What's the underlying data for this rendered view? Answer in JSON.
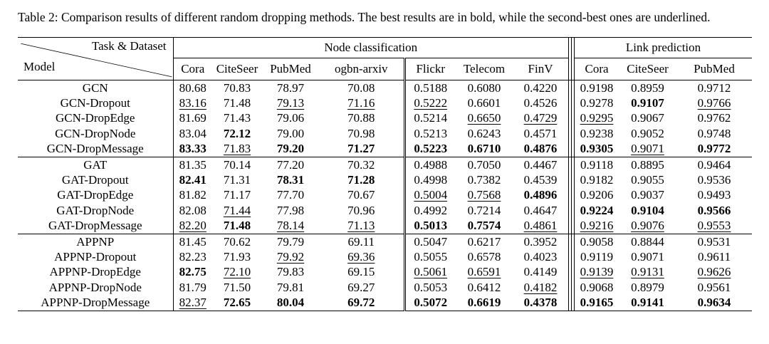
{
  "caption": "Table 2: Comparison results of different random dropping methods. The best results are in bold, while the second-best ones are underlined.",
  "header": {
    "corner_top": "Task & Dataset",
    "corner_bottom": "Model",
    "groups": [
      {
        "label": "Node classification",
        "span": 7
      },
      {
        "label": "Link prediction",
        "span": 3
      }
    ],
    "columns": [
      "Cora",
      "CiteSeer",
      "PubMed",
      "ogbn-arxiv",
      "Flickr",
      "Telecom",
      "FinV",
      "Cora",
      "CiteSeer",
      "PubMed"
    ]
  },
  "style_codes": {
    "p": "plain",
    "b": "best-bold",
    "u": "second-best-underlined"
  },
  "blocks": [
    {
      "rows": [
        {
          "model": "GCN",
          "values": [
            {
              "t": "80.68",
              "s": "p"
            },
            {
              "t": "70.83",
              "s": "p"
            },
            {
              "t": "78.97",
              "s": "p"
            },
            {
              "t": "70.08",
              "s": "p"
            },
            {
              "t": "0.5188",
              "s": "p"
            },
            {
              "t": "0.6080",
              "s": "p"
            },
            {
              "t": "0.4220",
              "s": "p"
            },
            {
              "t": "0.9198",
              "s": "p"
            },
            {
              "t": "0.8959",
              "s": "p"
            },
            {
              "t": "0.9712",
              "s": "p"
            }
          ]
        },
        {
          "model": "GCN-Dropout",
          "values": [
            {
              "t": "83.16",
              "s": "u"
            },
            {
              "t": "71.48",
              "s": "p"
            },
            {
              "t": "79.13",
              "s": "u"
            },
            {
              "t": "71.16",
              "s": "u"
            },
            {
              "t": "0.5222",
              "s": "u"
            },
            {
              "t": "0.6601",
              "s": "p"
            },
            {
              "t": "0.4526",
              "s": "p"
            },
            {
              "t": "0.9278",
              "s": "p"
            },
            {
              "t": "0.9107",
              "s": "b"
            },
            {
              "t": "0.9766",
              "s": "u"
            }
          ]
        },
        {
          "model": "GCN-DropEdge",
          "values": [
            {
              "t": "81.69",
              "s": "p"
            },
            {
              "t": "71.43",
              "s": "p"
            },
            {
              "t": "79.06",
              "s": "p"
            },
            {
              "t": "70.88",
              "s": "p"
            },
            {
              "t": "0.5214",
              "s": "p"
            },
            {
              "t": "0.6650",
              "s": "u"
            },
            {
              "t": "0.4729",
              "s": "u"
            },
            {
              "t": "0.9295",
              "s": "u"
            },
            {
              "t": "0.9067",
              "s": "p"
            },
            {
              "t": "0.9762",
              "s": "p"
            }
          ]
        },
        {
          "model": "GCN-DropNode",
          "values": [
            {
              "t": "83.04",
              "s": "p"
            },
            {
              "t": "72.12",
              "s": "b"
            },
            {
              "t": "79.00",
              "s": "p"
            },
            {
              "t": "70.98",
              "s": "p"
            },
            {
              "t": "0.5213",
              "s": "p"
            },
            {
              "t": "0.6243",
              "s": "p"
            },
            {
              "t": "0.4571",
              "s": "p"
            },
            {
              "t": "0.9238",
              "s": "p"
            },
            {
              "t": "0.9052",
              "s": "p"
            },
            {
              "t": "0.9748",
              "s": "p"
            }
          ]
        },
        {
          "model": "GCN-DropMessage",
          "values": [
            {
              "t": "83.33",
              "s": "b"
            },
            {
              "t": "71.83",
              "s": "u"
            },
            {
              "t": "79.20",
              "s": "b"
            },
            {
              "t": "71.27",
              "s": "b"
            },
            {
              "t": "0.5223",
              "s": "b"
            },
            {
              "t": "0.6710",
              "s": "b"
            },
            {
              "t": "0.4876",
              "s": "b"
            },
            {
              "t": "0.9305",
              "s": "b"
            },
            {
              "t": "0.9071",
              "s": "u"
            },
            {
              "t": "0.9772",
              "s": "b"
            }
          ]
        }
      ]
    },
    {
      "rows": [
        {
          "model": "GAT",
          "values": [
            {
              "t": "81.35",
              "s": "p"
            },
            {
              "t": "70.14",
              "s": "p"
            },
            {
              "t": "77.20",
              "s": "p"
            },
            {
              "t": "70.32",
              "s": "p"
            },
            {
              "t": "0.4988",
              "s": "p"
            },
            {
              "t": "0.7050",
              "s": "p"
            },
            {
              "t": "0.4467",
              "s": "p"
            },
            {
              "t": "0.9118",
              "s": "p"
            },
            {
              "t": "0.8895",
              "s": "p"
            },
            {
              "t": "0.9464",
              "s": "p"
            }
          ]
        },
        {
          "model": "GAT-Dropout",
          "values": [
            {
              "t": "82.41",
              "s": "b"
            },
            {
              "t": "71.31",
              "s": "p"
            },
            {
              "t": "78.31",
              "s": "b"
            },
            {
              "t": "71.28",
              "s": "b"
            },
            {
              "t": "0.4998",
              "s": "p"
            },
            {
              "t": "0.7382",
              "s": "p"
            },
            {
              "t": "0.4539",
              "s": "p"
            },
            {
              "t": "0.9182",
              "s": "p"
            },
            {
              "t": "0.9055",
              "s": "p"
            },
            {
              "t": "0.9536",
              "s": "p"
            }
          ]
        },
        {
          "model": "GAT-DropEdge",
          "values": [
            {
              "t": "81.82",
              "s": "p"
            },
            {
              "t": "71.17",
              "s": "p"
            },
            {
              "t": "77.70",
              "s": "p"
            },
            {
              "t": "70.67",
              "s": "p"
            },
            {
              "t": "0.5004",
              "s": "u"
            },
            {
              "t": "0.7568",
              "s": "u"
            },
            {
              "t": "0.4896",
              "s": "b"
            },
            {
              "t": "0.9206",
              "s": "p"
            },
            {
              "t": "0.9037",
              "s": "p"
            },
            {
              "t": "0.9493",
              "s": "p"
            }
          ]
        },
        {
          "model": "GAT-DropNode",
          "values": [
            {
              "t": "82.08",
              "s": "p"
            },
            {
              "t": "71.44",
              "s": "u"
            },
            {
              "t": "77.98",
              "s": "p"
            },
            {
              "t": "70.96",
              "s": "p"
            },
            {
              "t": "0.4992",
              "s": "p"
            },
            {
              "t": "0.7214",
              "s": "p"
            },
            {
              "t": "0.4647",
              "s": "p"
            },
            {
              "t": "0.9224",
              "s": "b"
            },
            {
              "t": "0.9104",
              "s": "b"
            },
            {
              "t": "0.9566",
              "s": "b"
            }
          ]
        },
        {
          "model": "GAT-DropMessage",
          "values": [
            {
              "t": "82.20",
              "s": "u"
            },
            {
              "t": "71.48",
              "s": "b"
            },
            {
              "t": "78.14",
              "s": "u"
            },
            {
              "t": "71.13",
              "s": "u"
            },
            {
              "t": "0.5013",
              "s": "b"
            },
            {
              "t": "0.7574",
              "s": "b"
            },
            {
              "t": "0.4861",
              "s": "u"
            },
            {
              "t": "0.9216",
              "s": "u"
            },
            {
              "t": "0.9076",
              "s": "u"
            },
            {
              "t": "0.9553",
              "s": "u"
            }
          ]
        }
      ]
    },
    {
      "rows": [
        {
          "model": "APPNP",
          "values": [
            {
              "t": "81.45",
              "s": "p"
            },
            {
              "t": "70.62",
              "s": "p"
            },
            {
              "t": "79.79",
              "s": "p"
            },
            {
              "t": "69.11",
              "s": "p"
            },
            {
              "t": "0.5047",
              "s": "p"
            },
            {
              "t": "0.6217",
              "s": "p"
            },
            {
              "t": "0.3952",
              "s": "p"
            },
            {
              "t": "0.9058",
              "s": "p"
            },
            {
              "t": "0.8844",
              "s": "p"
            },
            {
              "t": "0.9531",
              "s": "p"
            }
          ]
        },
        {
          "model": "APPNP-Dropout",
          "values": [
            {
              "t": "82.23",
              "s": "p"
            },
            {
              "t": "71.93",
              "s": "p"
            },
            {
              "t": "79.92",
              "s": "u"
            },
            {
              "t": "69.36",
              "s": "u"
            },
            {
              "t": "0.5055",
              "s": "p"
            },
            {
              "t": "0.6578",
              "s": "p"
            },
            {
              "t": "0.4023",
              "s": "p"
            },
            {
              "t": "0.9119",
              "s": "p"
            },
            {
              "t": "0.9071",
              "s": "p"
            },
            {
              "t": "0.9611",
              "s": "p"
            }
          ]
        },
        {
          "model": "APPNP-DropEdge",
          "values": [
            {
              "t": "82.75",
              "s": "b"
            },
            {
              "t": "72.10",
              "s": "u"
            },
            {
              "t": "79.83",
              "s": "p"
            },
            {
              "t": "69.15",
              "s": "p"
            },
            {
              "t": "0.5061",
              "s": "u"
            },
            {
              "t": "0.6591",
              "s": "u"
            },
            {
              "t": "0.4149",
              "s": "p"
            },
            {
              "t": "0.9139",
              "s": "u"
            },
            {
              "t": "0.9131",
              "s": "u"
            },
            {
              "t": "0.9626",
              "s": "u"
            }
          ]
        },
        {
          "model": "APPNP-DropNode",
          "values": [
            {
              "t": "81.79",
              "s": "p"
            },
            {
              "t": "71.50",
              "s": "p"
            },
            {
              "t": "79.81",
              "s": "p"
            },
            {
              "t": "69.27",
              "s": "p"
            },
            {
              "t": "0.5053",
              "s": "p"
            },
            {
              "t": "0.6412",
              "s": "p"
            },
            {
              "t": "0.4182",
              "s": "u"
            },
            {
              "t": "0.9068",
              "s": "p"
            },
            {
              "t": "0.8979",
              "s": "p"
            },
            {
              "t": "0.9561",
              "s": "p"
            }
          ]
        },
        {
          "model": "APPNP-DropMessage",
          "values": [
            {
              "t": "82.37",
              "s": "u"
            },
            {
              "t": "72.65",
              "s": "b"
            },
            {
              "t": "80.04",
              "s": "b"
            },
            {
              "t": "69.72",
              "s": "b"
            },
            {
              "t": "0.5072",
              "s": "b"
            },
            {
              "t": "0.6619",
              "s": "b"
            },
            {
              "t": "0.4378",
              "s": "b"
            },
            {
              "t": "0.9165",
              "s": "b"
            },
            {
              "t": "0.9141",
              "s": "b"
            },
            {
              "t": "0.9634",
              "s": "b"
            }
          ]
        }
      ]
    }
  ]
}
